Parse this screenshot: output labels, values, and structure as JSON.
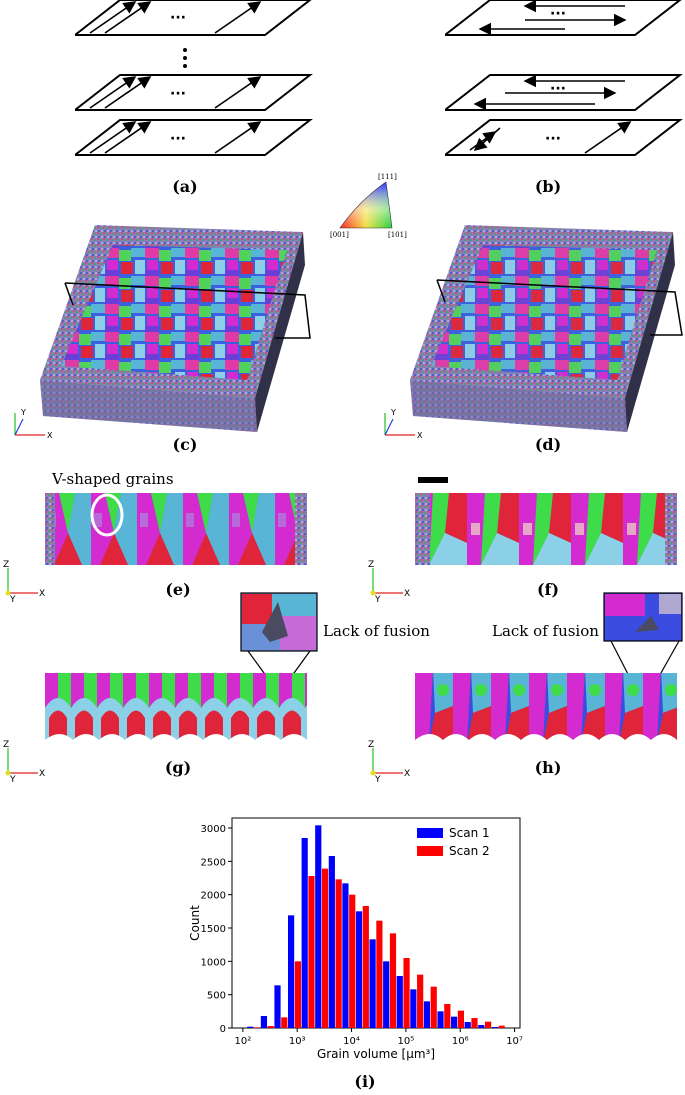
{
  "panels": {
    "a": "(a)",
    "b": "(b)",
    "c": "(c)",
    "d": "(d)",
    "e": "(e)",
    "f": "(f)",
    "g": "(g)",
    "h": "(h)",
    "i": "(i)"
  },
  "scan_diagram": {
    "ellipsis": "···"
  },
  "ipf_key": {
    "top": "[111]",
    "left": "[001]",
    "right": "[101]"
  },
  "annotations": {
    "v_shaped": "V-shaped grains",
    "lof_g": "Lack of fusion",
    "lof_h": "Lack of fusion"
  },
  "axes_labels": {
    "x": "X",
    "y": "Y",
    "z": "Z"
  },
  "colors": {
    "ipf_red": "#e0243a",
    "ipf_green": "#3fdc4a",
    "ipf_blue": "#3a4de0",
    "ipf_magenta": "#d42bd0",
    "ipf_cyan": "#59b5d6",
    "scan1": "#0000ff",
    "scan2": "#ff0000"
  },
  "chart_data": {
    "type": "bar",
    "xlabel": "Grain volume [μm³]",
    "ylabel": "Count",
    "x_scale": "log",
    "x_ticks": [
      "10²",
      "10³",
      "10⁴",
      "10⁵",
      "10⁶",
      "10⁷"
    ],
    "xlim_log10": [
      1.8,
      7.1
    ],
    "y_ticks": [
      "0",
      "500",
      "1000",
      "1500",
      "2000",
      "2500",
      "3000"
    ],
    "ylim": [
      0,
      3150
    ],
    "legend_position": "top-right",
    "bin_centers_log10": [
      2.2,
      2.45,
      2.7,
      2.95,
      3.2,
      3.45,
      3.7,
      3.95,
      4.2,
      4.45,
      4.7,
      4.95,
      5.2,
      5.45,
      5.7,
      5.95,
      6.2,
      6.45,
      6.7
    ],
    "series": [
      {
        "name": "Scan 1",
        "color": "#0000ff",
        "values": [
          20,
          180,
          640,
          1690,
          2850,
          3040,
          2580,
          2170,
          1750,
          1330,
          1000,
          780,
          580,
          400,
          250,
          170,
          90,
          45,
          15
        ]
      },
      {
        "name": "Scan 2",
        "color": "#ff0000",
        "values": [
          10,
          30,
          160,
          1000,
          2280,
          2390,
          2230,
          2000,
          1830,
          1610,
          1420,
          1050,
          800,
          620,
          360,
          260,
          150,
          95,
          35
        ]
      }
    ]
  }
}
